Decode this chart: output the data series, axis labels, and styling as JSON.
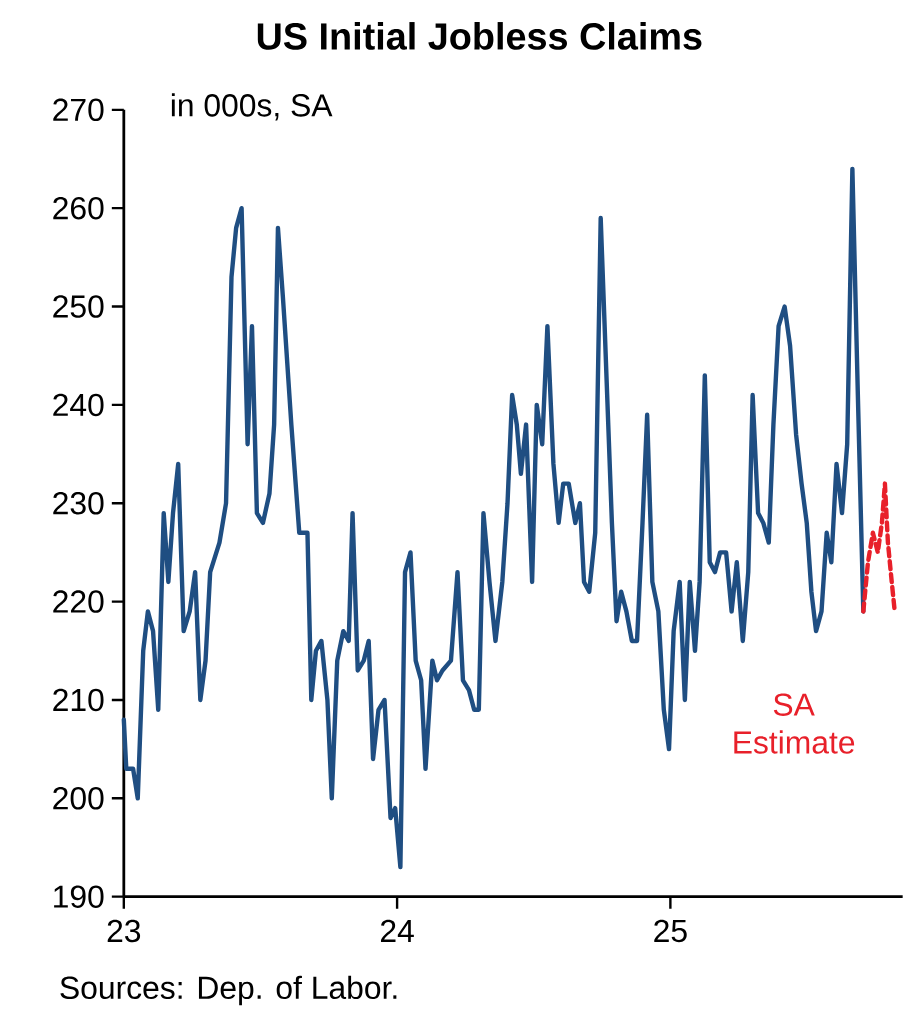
{
  "chart_data": {
    "type": "line",
    "title": "US Initial Jobless Claims",
    "ylabel": "in 000s, SA",
    "annotations": [
      "Sources: Dep. of Labor."
    ],
    "xlim": [
      23,
      25.85
    ],
    "xticks": [
      23,
      24,
      25
    ],
    "ylim": [
      190,
      270
    ],
    "yticks": [
      190,
      200,
      210,
      220,
      230,
      240,
      250,
      260,
      270
    ],
    "grid": false,
    "series": [
      {
        "color": "#1f4e82",
        "line_style": "solid",
        "x": [
          23.0,
          23.009,
          23.034,
          23.051,
          23.071,
          23.088,
          23.107,
          23.126,
          23.146,
          23.163,
          23.18,
          23.199,
          23.219,
          23.241,
          23.261,
          23.28,
          23.299,
          23.316,
          23.35,
          23.374,
          23.394,
          23.411,
          23.431,
          23.453,
          23.469,
          23.487,
          23.509,
          23.533,
          23.55,
          23.564,
          23.582,
          23.613,
          23.642,
          23.672,
          23.686,
          23.703,
          23.723,
          23.745,
          23.761,
          23.781,
          23.803,
          23.823,
          23.837,
          23.856,
          23.878,
          23.896,
          23.912,
          23.932,
          23.954,
          23.976,
          23.993,
          24.012,
          24.029,
          24.049,
          24.068,
          24.088,
          24.104,
          24.129,
          24.146,
          24.166,
          24.197,
          24.221,
          24.241,
          24.263,
          24.282,
          24.299,
          24.316,
          24.338,
          24.36,
          24.385,
          24.404,
          24.421,
          24.438,
          24.453,
          24.472,
          24.494,
          24.511,
          24.531,
          24.55,
          24.572,
          24.591,
          24.608,
          24.628,
          24.652,
          24.669,
          24.684,
          24.703,
          24.725,
          24.745,
          24.766,
          24.786,
          24.803,
          24.82,
          24.839,
          24.859,
          24.878,
          24.898,
          24.915,
          24.934,
          24.956,
          24.976,
          24.995,
          25.012,
          25.034,
          25.053,
          25.071,
          25.09,
          25.107,
          25.126,
          25.144,
          25.163,
          25.182,
          25.204,
          25.224,
          25.243,
          25.265,
          25.285,
          25.301,
          25.321,
          25.34,
          25.36,
          25.377,
          25.396,
          25.418,
          25.438,
          25.46,
          25.48,
          25.499,
          25.516,
          25.533,
          25.553,
          25.572,
          25.589,
          25.608,
          25.628,
          25.647,
          25.666,
          25.686,
          25.706
        ],
        "values": [
          208,
          203,
          203,
          200,
          215,
          219,
          217,
          209,
          229,
          222,
          229,
          234,
          217,
          219,
          223,
          210,
          214,
          223,
          226,
          230,
          253,
          258,
          260,
          236,
          248,
          229,
          228,
          231,
          238,
          258,
          251,
          238,
          227,
          227,
          210,
          215,
          216,
          210,
          200,
          214,
          217,
          216,
          229,
          213,
          214,
          216,
          204,
          209,
          210,
          198,
          199,
          193,
          223,
          225,
          214,
          212,
          203,
          214,
          212,
          213,
          214,
          223,
          212,
          211,
          209,
          209,
          229,
          222,
          216,
          222,
          230,
          241,
          238,
          233,
          238,
          222,
          240,
          236,
          248,
          234,
          228,
          232,
          232,
          228,
          230,
          222,
          221,
          227,
          259,
          243,
          228,
          218,
          221,
          219,
          216,
          216,
          228,
          239,
          222,
          219,
          209,
          205,
          217,
          222,
          210,
          222,
          215,
          222,
          243,
          224,
          223,
          225,
          225,
          219,
          224,
          216,
          223,
          241,
          229,
          228,
          226,
          238,
          248,
          250,
          246,
          237,
          232,
          228,
          221,
          217,
          219,
          227,
          224,
          234,
          229,
          236,
          264,
          241,
          219
        ]
      },
      {
        "name": "SA Estimate",
        "color": "#e8202a",
        "line_style": "dashed",
        "x": [
          25.706,
          25.723,
          25.741,
          25.759,
          25.774,
          25.785,
          25.796,
          25.81,
          25.821
        ],
        "values": [
          219,
          224,
          227,
          225,
          228,
          232,
          226,
          222,
          219
        ]
      }
    ]
  }
}
